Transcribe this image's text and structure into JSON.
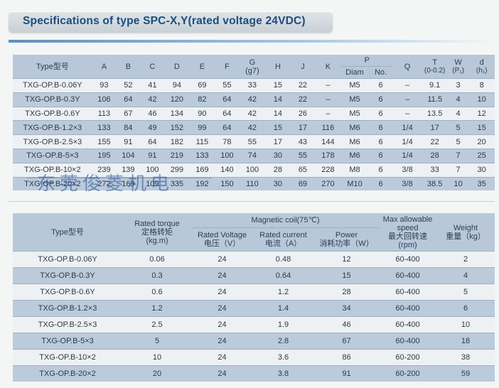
{
  "title": "Specifications of type SPC-X,Y(rated voltage 24VDC)",
  "watermark": "东莞俊菱机电",
  "table1": {
    "headers": {
      "type": "Type型号",
      "A": "A",
      "B": "B",
      "C": "C",
      "D": "D",
      "E": "E",
      "F": "F",
      "G": "G",
      "G_sub": "(g7)",
      "H": "H",
      "J": "J",
      "K": "K",
      "P": "P",
      "P_diam": "Diam",
      "P_no": "No.",
      "Q": "Q",
      "T": "T",
      "T_sub": "(0-0.2)",
      "W": "W",
      "W_sub": "(P₁)",
      "d": "d",
      "d_sub": "(h₁)"
    },
    "rows": [
      [
        "TXG-OP.B-0.06Y",
        "93",
        "52",
        "41",
        "94",
        "69",
        "55",
        "33",
        "15",
        "22",
        "–",
        "M5",
        "6",
        "–",
        "9.1",
        "3",
        "8"
      ],
      [
        "TXG-OP.B-0.3Y",
        "106",
        "64",
        "42",
        "120",
        "82",
        "64",
        "42",
        "14",
        "22",
        "–",
        "M5",
        "6",
        "–",
        "11.5",
        "4",
        "10"
      ],
      [
        "TXG-OP.B-0.6Y",
        "113",
        "67",
        "46",
        "134",
        "90",
        "64",
        "42",
        "14",
        "26",
        "–",
        "M5",
        "6",
        "–",
        "13.5",
        "4",
        "12"
      ],
      [
        "TXG-OP.B-1.2×3",
        "133",
        "84",
        "49",
        "152",
        "99",
        "64",
        "42",
        "15",
        "17",
        "116",
        "M6",
        "6",
        "1/4",
        "17",
        "5",
        "15"
      ],
      [
        "TXG-OP.B-2.5×3",
        "155",
        "91",
        "64",
        "182",
        "115",
        "78",
        "55",
        "17",
        "43",
        "144",
        "M6",
        "6",
        "1/4",
        "22",
        "5",
        "20"
      ],
      [
        "TXG-OP.B-5×3",
        "195",
        "104",
        "91",
        "219",
        "133",
        "100",
        "74",
        "30",
        "55",
        "178",
        "M6",
        "6",
        "1/4",
        "28",
        "7",
        "25"
      ],
      [
        "TXG-OP.B-10×2",
        "239",
        "139",
        "100",
        "299",
        "169",
        "140",
        "100",
        "28",
        "65",
        "228",
        "M8",
        "6",
        "3/8",
        "33",
        "7",
        "30"
      ],
      [
        "TXG-OP.B-20×2",
        "272",
        "169",
        "109",
        "335",
        "192",
        "150",
        "110",
        "30",
        "69",
        "270",
        "M10",
        "6",
        "3/8",
        "38.5",
        "10",
        "35"
      ]
    ]
  },
  "table2": {
    "headers": {
      "type": "Type型号",
      "torque": [
        "Rated torque",
        "定格转矩",
        "(kg.m)"
      ],
      "coil": "Magnetic coil(75℃)",
      "voltage": [
        "Rated Voltage",
        "电压（V）"
      ],
      "current": [
        "Rated current",
        "电流（A）"
      ],
      "power": [
        "Power",
        "消耗功率（W）"
      ],
      "speed": [
        "Max allowable",
        "speed",
        "最大回转速",
        "(rpm)"
      ],
      "weight": [
        "Weight",
        "重量（kg）"
      ]
    },
    "rows": [
      [
        "TXG-OP.B-0.06Y",
        "0.06",
        "24",
        "0.48",
        "12",
        "60-400",
        "2"
      ],
      [
        "TXG-OP.B-0.3Y",
        "0.3",
        "24",
        "0.64",
        "15",
        "60-400",
        "4"
      ],
      [
        "TXG-OP.B-0.6Y",
        "0.6",
        "24",
        "1.2",
        "28",
        "60-400",
        "5"
      ],
      [
        "TXG-OP.B-1.2×3",
        "1.2",
        "24",
        "1.4",
        "34",
        "60-400",
        "6"
      ],
      [
        "TXG-OP.B-2.5×3",
        "2.5",
        "24",
        "1.9",
        "46",
        "60-400",
        "10"
      ],
      [
        "TXG-OP.B-5×3",
        "5",
        "24",
        "2.8",
        "67",
        "60-400",
        "18"
      ],
      [
        "TXG-OP.B-10×2",
        "10",
        "24",
        "3.6",
        "86",
        "60-200",
        "38"
      ],
      [
        "TXG-OP.B-20×2",
        "20",
        "24",
        "3.8",
        "91",
        "60-200",
        "59"
      ]
    ]
  }
}
